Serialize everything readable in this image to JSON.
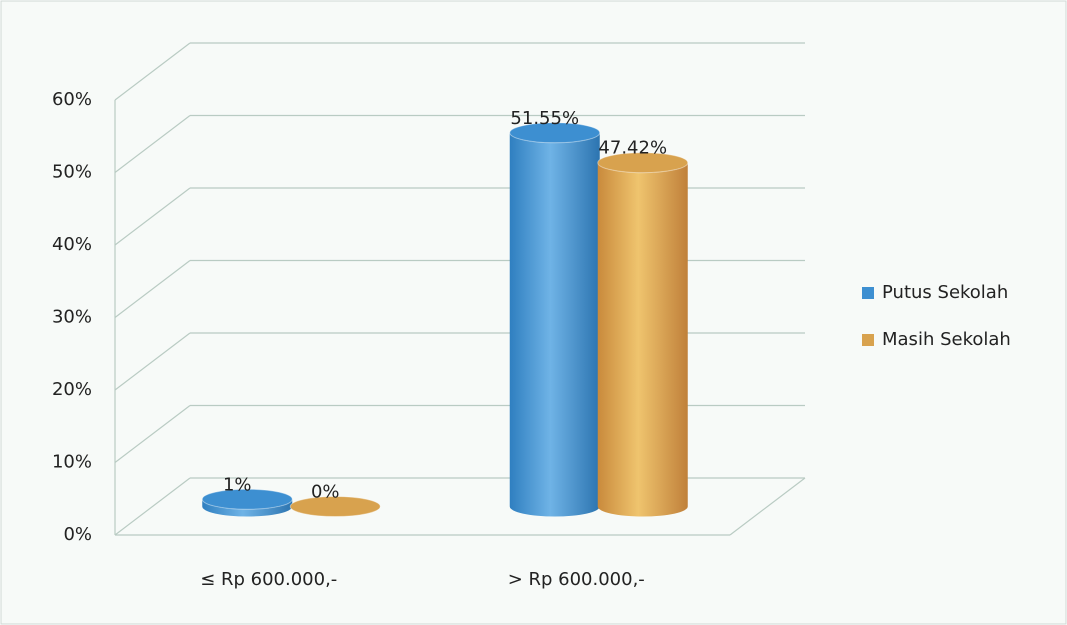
{
  "chart_data": {
    "type": "bar",
    "categories": [
      "≤ Rp 600.000,-",
      "> Rp 600.000,-"
    ],
    "series": [
      {
        "name": "Putus Sekolah",
        "color": "#3d8fd1",
        "values": [
          1,
          51.55
        ],
        "value_labels": [
          "1%",
          "51.55%"
        ]
      },
      {
        "name": "Masih Sekolah",
        "color": "#d8a24e",
        "values": [
          0,
          47.42
        ],
        "value_labels": [
          "0%",
          "47.42%"
        ]
      }
    ],
    "ylim": [
      0,
      60
    ],
    "yticks": [
      {
        "value": 0,
        "label": "0%"
      },
      {
        "value": 10,
        "label": "10%"
      },
      {
        "value": 20,
        "label": "20%"
      },
      {
        "value": 30,
        "label": "30%"
      },
      {
        "value": 40,
        "label": "40%"
      },
      {
        "value": 50,
        "label": "50%"
      },
      {
        "value": 60,
        "label": "60%"
      }
    ],
    "grid": true,
    "legend": "right"
  }
}
